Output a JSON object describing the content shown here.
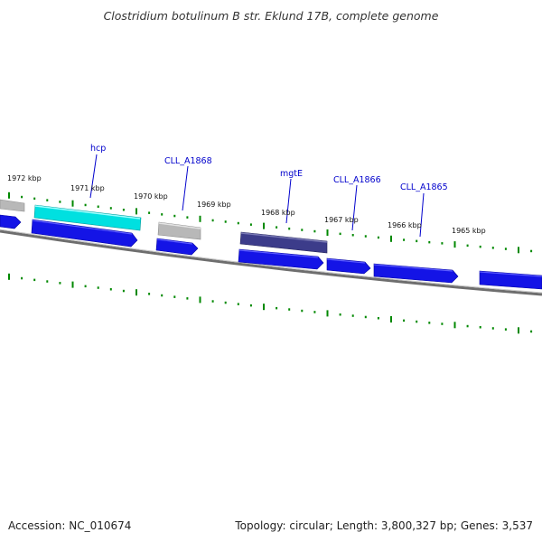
{
  "title": "Clostridium botulinum B str. Eklund 17B, complete genome",
  "footer": {
    "accession": "Accession: NC_010674",
    "summary": "Topology: circular; Length: 3,800,327 bp; Genes: 3,537"
  },
  "colors": {
    "backbone": "#777777",
    "tick": "#008800",
    "gene_blue": "#1010e0",
    "gene_cyan": "#00dede",
    "gene_gray": "#b8b8b8",
    "gene_purple": "#3c3c88",
    "label": "#0000cc"
  },
  "scale_labels": [
    "1972 kbp",
    "1971 kbp",
    "1970 kbp",
    "1969 kbp",
    "1968 kbp",
    "1967 kbp",
    "1966 kbp",
    "1965 kbp"
  ],
  "gene_labels": [
    "hcp",
    "CLL_A1868",
    "mgtE",
    "CLL_A1866",
    "CLL_A1865"
  ]
}
